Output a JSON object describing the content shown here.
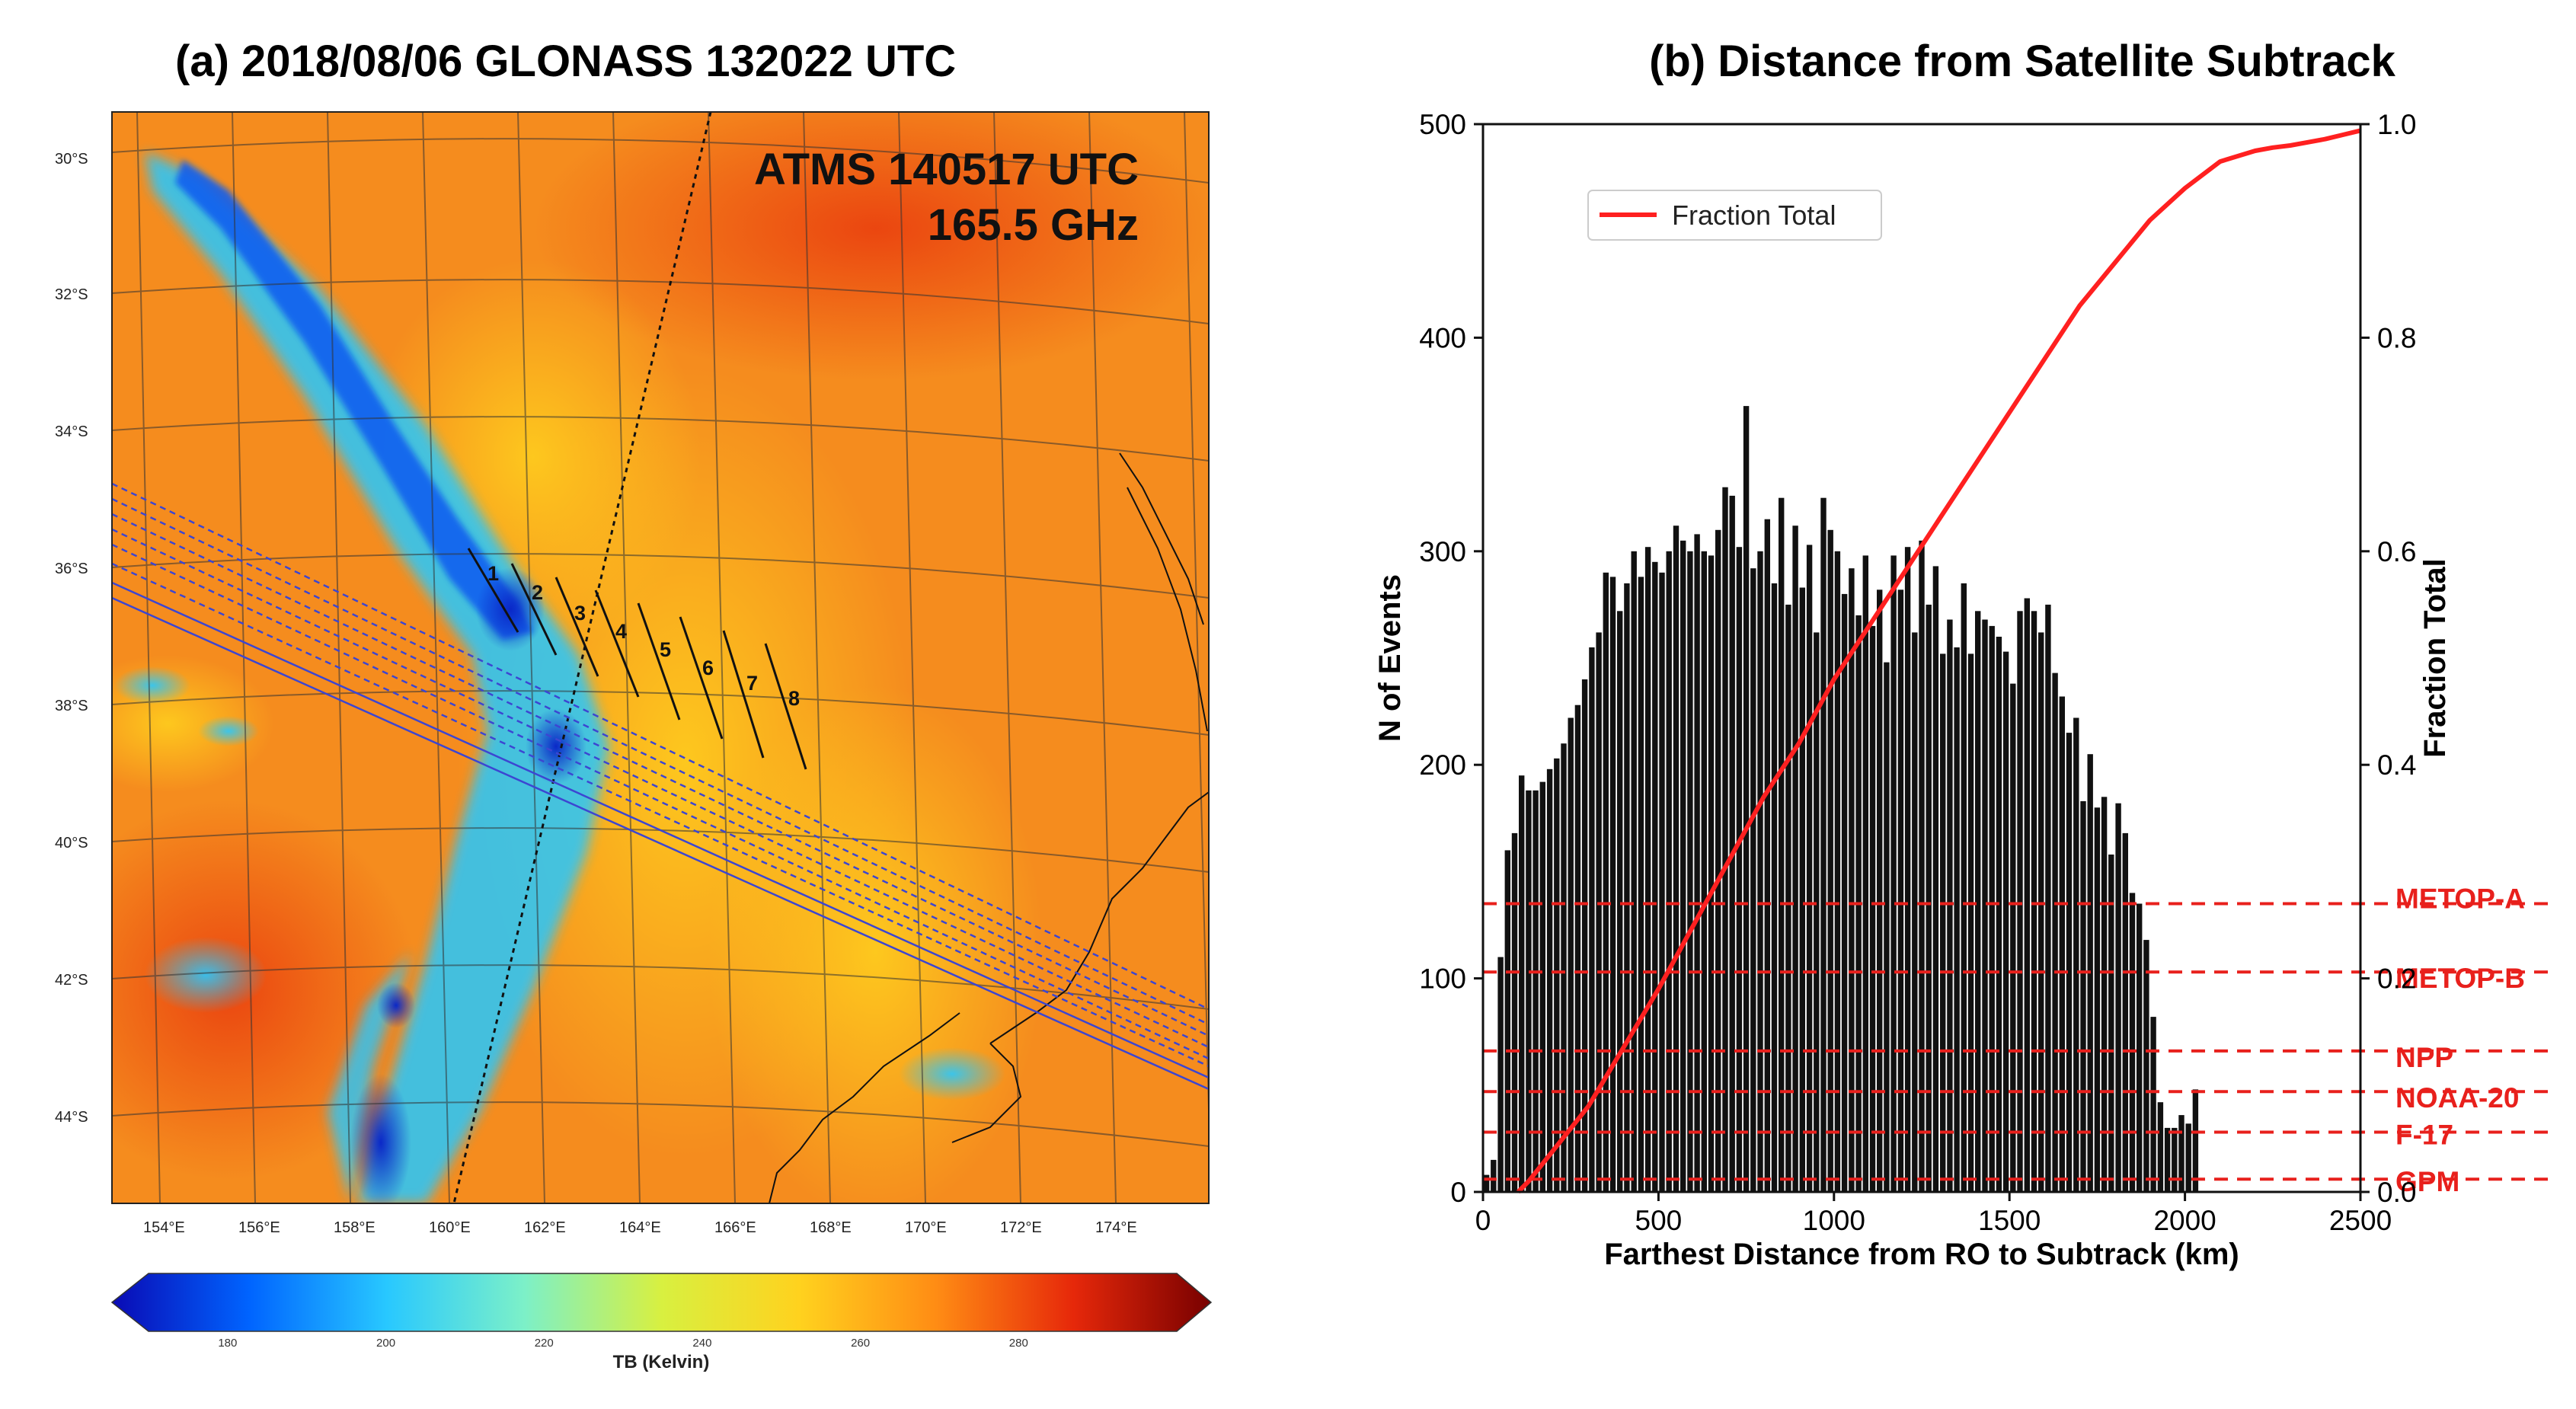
{
  "chart_data": [
    {
      "type": "map",
      "title": "(a)   2018/08/06    GLONASS 132022 UTC",
      "overlay_text": [
        "ATMS 140517 UTC",
        "165.5 GHz"
      ],
      "lat_ticks": [
        "30°S",
        "32°S",
        "34°S",
        "36°S",
        "38°S",
        "40°S",
        "42°S",
        "44°S"
      ],
      "lon_ticks": [
        "154°E",
        "156°E",
        "158°E",
        "160°E",
        "162°E",
        "164°E",
        "166°E",
        "168°E",
        "170°E",
        "172°E",
        "174°E"
      ],
      "scan_numbers": [
        "1",
        "2",
        "3",
        "4",
        "5",
        "6",
        "7",
        "8"
      ],
      "colorbar": {
        "label": "TB (Kelvin)",
        "ticks": [
          "180",
          "200",
          "220",
          "240",
          "260",
          "280"
        ],
        "range": [
          170,
          300
        ],
        "colors": [
          "#0a0ab4",
          "#0064ff",
          "#28c8ff",
          "#7cf0c8",
          "#d8f040",
          "#ffd21e",
          "#ff8c14",
          "#e6280a",
          "#780000"
        ]
      },
      "colors": {
        "background": "#f58c1e",
        "trough": "#1ec3f0",
        "core": "#0a28c8",
        "track": "#3c46d2"
      }
    },
    {
      "type": "bar+line",
      "title": "(b)   Distance from Satellite Subtrack",
      "xlabel": "Farthest Distance from RO to Subtrack (km)",
      "ylabel": "N of Events",
      "y2label": "Fraction Total",
      "xlim": [
        0,
        2500
      ],
      "ylim": [
        0,
        500
      ],
      "y2lim": [
        0,
        1.0
      ],
      "x_ticks": [
        "0",
        "500",
        "1000",
        "1500",
        "2000",
        "2500"
      ],
      "y_ticks": [
        "0",
        "100",
        "200",
        "300",
        "400",
        "500"
      ],
      "y2_ticks": [
        "0.0",
        "0.2",
        "0.4",
        "0.6",
        "0.8",
        "1.0"
      ],
      "bin_width_km": 20,
      "bar_values": [
        8,
        15,
        110,
        160,
        168,
        195,
        188,
        188,
        192,
        198,
        203,
        210,
        222,
        228,
        240,
        255,
        262,
        290,
        288,
        272,
        285,
        300,
        288,
        302,
        295,
        290,
        300,
        312,
        305,
        300,
        308,
        300,
        298,
        310,
        330,
        326,
        302,
        368,
        292,
        300,
        315,
        285,
        325,
        275,
        312,
        283,
        303,
        262,
        325,
        310,
        300,
        280,
        292,
        270,
        298,
        265,
        282,
        248,
        298,
        282,
        302,
        262,
        305,
        275,
        293,
        252,
        268,
        255,
        285,
        252,
        272,
        268,
        265,
        260,
        253,
        238,
        272,
        278,
        272,
        262,
        275,
        243,
        232,
        215,
        222,
        183,
        205,
        180,
        185,
        158,
        182,
        168,
        140,
        135,
        118,
        82,
        42,
        30,
        30,
        36,
        32,
        48
      ],
      "line": {
        "name": "Fraction Total",
        "x": [
          100,
          130,
          300,
          500,
          700,
          800,
          900,
          1000,
          1100,
          1200,
          1300,
          1400,
          1500,
          1600,
          1700,
          1800,
          1900,
          2000,
          2100,
          2200,
          2250,
          2300,
          2350,
          2400,
          2450,
          2500
        ],
        "y": [
          0,
          0.01,
          0.08,
          0.19,
          0.31,
          0.37,
          0.42,
          0.48,
          0.53,
          0.58,
          0.63,
          0.68,
          0.73,
          0.78,
          0.83,
          0.87,
          0.91,
          0.94,
          0.965,
          0.975,
          0.978,
          0.98,
          0.983,
          0.986,
          0.99,
          0.994
        ],
        "color": "#ff2020"
      },
      "reference_lines": [
        {
          "label": "METOP-A",
          "y": 135
        },
        {
          "label": "METOP-B",
          "y": 103
        },
        {
          "label": "NPP",
          "y": 66
        },
        {
          "label": "NOAA-20",
          "y": 47
        },
        {
          "label": "F-17",
          "y": 28
        },
        {
          "label": "GPM",
          "y": 6
        }
      ],
      "reference_color": "#e8201c",
      "legend": {
        "label": "Fraction Total",
        "placement": "upper-left"
      }
    }
  ]
}
